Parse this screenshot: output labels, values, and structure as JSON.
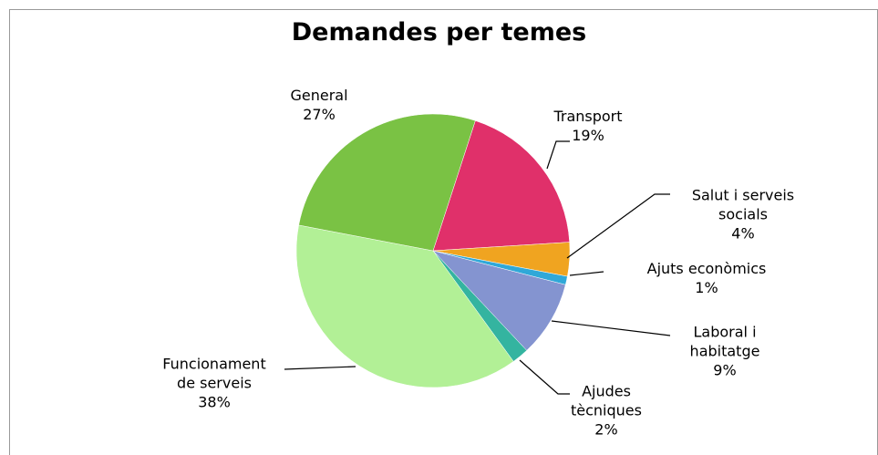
{
  "chart_data": {
    "type": "pie",
    "title": "Demandes per temes",
    "categories": [
      "Transport",
      "Salut i serveis socials",
      "Ajuts econòmics",
      "Laboral i habitatge",
      "Ajudes tècniques",
      "Funcionament de serveis",
      "General"
    ],
    "values": [
      19,
      4,
      1,
      9,
      2,
      38,
      27
    ],
    "value_labels": [
      "19%",
      "4%",
      "1%",
      "9%",
      "2%",
      "38%",
      "27%"
    ],
    "colors": [
      "#e0306a",
      "#f0a420",
      "#30a8d8",
      "#8494d0",
      "#34b4a0",
      "#b2f096",
      "#7ac244"
    ]
  }
}
